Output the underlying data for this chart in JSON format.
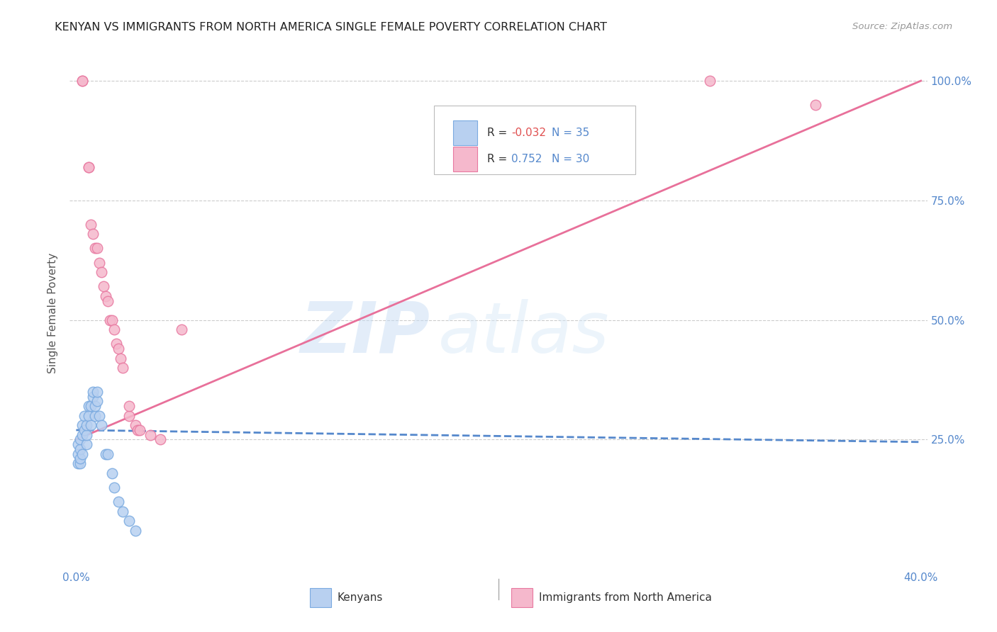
{
  "title": "KENYAN VS IMMIGRANTS FROM NORTH AMERICA SINGLE FEMALE POVERTY CORRELATION CHART",
  "source": "Source: ZipAtlas.com",
  "ylabel": "Single Female Poverty",
  "kenyan_color": "#b8d0f0",
  "kenyan_edge_color": "#7aaae0",
  "immigrant_color": "#f5b8cc",
  "immigrant_edge_color": "#e878a0",
  "trend_kenyan_color": "#5588cc",
  "trend_immigrant_color": "#e8709a",
  "legend_R_kenyan": "-0.032",
  "legend_N_kenyan": "35",
  "legend_R_immigrant": "0.752",
  "legend_N_immigrant": "30",
  "watermark_zip": "ZIP",
  "watermark_atlas": "atlas",
  "xlim": [
    0.0,
    0.4
  ],
  "ylim": [
    0.0,
    1.05
  ],
  "kenyan_x": [
    0.001,
    0.001,
    0.001,
    0.002,
    0.002,
    0.002,
    0.002,
    0.003,
    0.003,
    0.003,
    0.004,
    0.004,
    0.005,
    0.005,
    0.005,
    0.006,
    0.006,
    0.007,
    0.007,
    0.008,
    0.008,
    0.009,
    0.009,
    0.01,
    0.01,
    0.011,
    0.012,
    0.014,
    0.015,
    0.017,
    0.018,
    0.02,
    0.022,
    0.025,
    0.028
  ],
  "kenyan_y": [
    0.2,
    0.22,
    0.24,
    0.2,
    0.21,
    0.23,
    0.25,
    0.22,
    0.26,
    0.28,
    0.27,
    0.3,
    0.24,
    0.26,
    0.28,
    0.3,
    0.32,
    0.28,
    0.32,
    0.34,
    0.35,
    0.3,
    0.32,
    0.33,
    0.35,
    0.3,
    0.28,
    0.22,
    0.22,
    0.18,
    0.15,
    0.12,
    0.1,
    0.08,
    0.06
  ],
  "immigrant_x": [
    0.003,
    0.003,
    0.006,
    0.006,
    0.007,
    0.008,
    0.009,
    0.01,
    0.011,
    0.012,
    0.013,
    0.014,
    0.015,
    0.016,
    0.017,
    0.018,
    0.019,
    0.02,
    0.021,
    0.022,
    0.025,
    0.025,
    0.028,
    0.029,
    0.03,
    0.035,
    0.04,
    0.05,
    0.3,
    0.35
  ],
  "immigrant_y": [
    1.0,
    1.0,
    0.82,
    0.82,
    0.7,
    0.68,
    0.65,
    0.65,
    0.62,
    0.6,
    0.57,
    0.55,
    0.54,
    0.5,
    0.5,
    0.48,
    0.45,
    0.44,
    0.42,
    0.4,
    0.3,
    0.32,
    0.28,
    0.27,
    0.27,
    0.26,
    0.25,
    0.48,
    1.0,
    0.95
  ],
  "trend_k_x0": 0.0,
  "trend_k_x1": 0.4,
  "trend_k_y0": 0.27,
  "trend_k_y1": 0.245,
  "trend_i_x0": 0.0,
  "trend_i_x1": 0.4,
  "trend_i_y0": 0.25,
  "trend_i_y1": 1.0
}
